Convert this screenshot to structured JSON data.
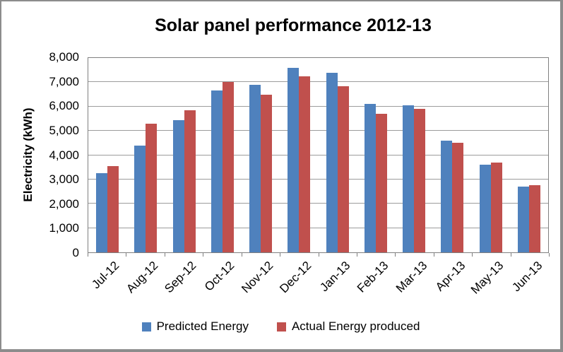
{
  "frame": {
    "background": "#FFFFFF",
    "border_color": "#8C8C8C"
  },
  "chart_data": {
    "type": "bar",
    "title": "Solar panel performance 2012-13",
    "ylabel": "Electricity (kWh)",
    "xlabel": "",
    "categories": [
      "Jul-12",
      "Aug-12",
      "Sep-12",
      "Oct-12",
      "Nov-12",
      "Dec-12",
      "Jan-13",
      "Feb-13",
      "Mar-13",
      "Apr-13",
      "May-13",
      "Jun-13"
    ],
    "series": [
      {
        "name": "Predicted Energy",
        "color": "#4F81BD",
        "values": [
          3250,
          4400,
          5450,
          6650,
          6900,
          7600,
          7400,
          6100,
          6050,
          4600,
          3600,
          2700
        ]
      },
      {
        "name": "Actual Energy produced",
        "color": "#C0504D",
        "values": [
          3550,
          5300,
          5850,
          7000,
          6500,
          7250,
          6850,
          5700,
          5900,
          4500,
          3700,
          2750
        ]
      }
    ],
    "ylim": [
      0,
      8000
    ],
    "y_tick_step": 1000,
    "y_tick_labels": [
      "0",
      "1,000",
      "2,000",
      "3,000",
      "4,000",
      "5,000",
      "6,000",
      "7,000",
      "8,000"
    ],
    "grid": "horizontal",
    "gridline_color": "#9C9C9C",
    "axis_color": "#808080",
    "text_color": "#000000",
    "legend_position": "bottom"
  }
}
